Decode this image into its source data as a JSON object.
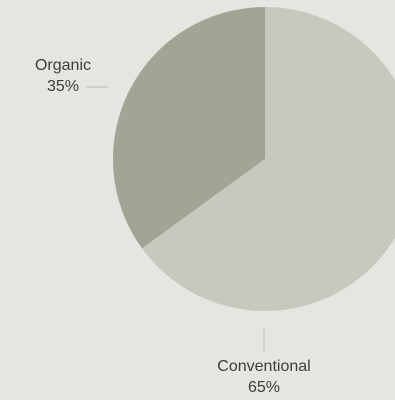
{
  "chart_data": {
    "type": "pie",
    "slices": [
      {
        "label": "Organic",
        "value": 35,
        "value_label": "35%",
        "color": "#a1a594"
      },
      {
        "label": "Conventional",
        "value": 65,
        "value_label": "65%",
        "color": "#c7c8be"
      }
    ],
    "start": "12 o'clock",
    "direction": "counterclockwise",
    "leader_line_color": "#b9b9b1"
  }
}
